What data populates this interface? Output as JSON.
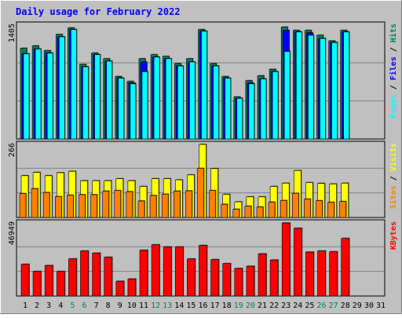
{
  "title": "Daily usage for February 2022",
  "colors": {
    "background": "#c0c0c0",
    "title": "#0000ff",
    "hits": "#00805c",
    "files": "#0000ff",
    "pages": "#00ffff",
    "visits": "#ffff00",
    "sites": "#ff8000",
    "kbytes": "#ff0000",
    "weekend_label": "#00805c",
    "weekday_label": "#000000"
  },
  "chart_data": [
    {
      "type": "bar",
      "title": "",
      "ymax_label": "1405",
      "ylim": [
        0,
        1405
      ],
      "grid": true,
      "legend": [
        {
          "name": "Pages",
          "color": "#00ffff"
        },
        {
          "name": "Files",
          "color": "#0000ff"
        },
        {
          "name": "Hits",
          "color": "#00805c"
        }
      ],
      "categories": [
        "1",
        "2",
        "3",
        "4",
        "5",
        "6",
        "7",
        "8",
        "9",
        "10",
        "11",
        "12",
        "13",
        "14",
        "15",
        "16",
        "17",
        "18",
        "19",
        "20",
        "21",
        "22",
        "23",
        "24",
        "25",
        "26",
        "27",
        "28"
      ],
      "series": [
        {
          "name": "Hits",
          "values": [
            1120,
            1150,
            1090,
            1290,
            1370,
            920,
            1060,
            990,
            770,
            710,
            990,
            1040,
            1020,
            930,
            990,
            1350,
            930,
            770,
            520,
            720,
            780,
            860,
            1380,
            1340,
            1340,
            1280,
            1210,
            1340
          ]
        },
        {
          "name": "Files",
          "values": [
            1050,
            1110,
            1060,
            1260,
            1350,
            890,
            1040,
            960,
            750,
            690,
            950,
            1010,
            990,
            900,
            950,
            1330,
            900,
            750,
            500,
            690,
            740,
            830,
            1340,
            1320,
            1310,
            1240,
            1190,
            1320
          ]
        },
        {
          "name": "Pages",
          "values": [
            1050,
            1110,
            1060,
            1260,
            1350,
            890,
            1040,
            960,
            750,
            680,
            830,
            1010,
            990,
            900,
            950,
            1330,
            900,
            750,
            500,
            680,
            740,
            830,
            1080,
            1320,
            1280,
            1240,
            1190,
            1320
          ]
        }
      ]
    },
    {
      "type": "bar",
      "title": "",
      "ymax_label": "266",
      "ylim": [
        0,
        266
      ],
      "grid": true,
      "legend": [
        {
          "name": "Sites",
          "color": "#ff8000"
        },
        {
          "name": "Visits",
          "color": "#ffff00"
        }
      ],
      "categories": [
        "1",
        "2",
        "3",
        "4",
        "5",
        "6",
        "7",
        "8",
        "9",
        "10",
        "11",
        "12",
        "13",
        "14",
        "15",
        "16",
        "17",
        "18",
        "19",
        "20",
        "21",
        "22",
        "23",
        "24",
        "25",
        "26",
        "27",
        "28"
      ],
      "series": [
        {
          "name": "Visits",
          "values": [
            152,
            164,
            152,
            163,
            168,
            134,
            134,
            134,
            141,
            134,
            113,
            141,
            141,
            137,
            155,
            266,
            178,
            84,
            57,
            75,
            75,
            113,
            125,
            171,
            127,
            124,
            122,
            125
          ]
        },
        {
          "name": "Sites",
          "values": [
            87,
            105,
            91,
            76,
            81,
            83,
            83,
            96,
            98,
            94,
            60,
            80,
            85,
            96,
            97,
            179,
            98,
            48,
            30,
            41,
            38,
            56,
            62,
            88,
            67,
            61,
            55,
            58
          ]
        }
      ]
    },
    {
      "type": "bar",
      "title": "",
      "ymax_label": "46949",
      "ylim": [
        0,
        46949
      ],
      "grid": true,
      "legend": [
        {
          "name": "KBytes",
          "color": "#ff0000"
        }
      ],
      "categories": [
        "1",
        "2",
        "3",
        "4",
        "5",
        "6",
        "7",
        "8",
        "9",
        "10",
        "11",
        "12",
        "13",
        "14",
        "15",
        "16",
        "17",
        "18",
        "19",
        "20",
        "21",
        "22",
        "23",
        "24",
        "25",
        "26",
        "27",
        "28"
      ],
      "series": [
        {
          "name": "KBytes",
          "values": [
            20420,
            15790,
            19590,
            15780,
            23880,
            28940,
            27550,
            24910,
            9470,
            10960,
            29420,
            32950,
            31560,
            31560,
            23820,
            32500,
            23410,
            20850,
            17720,
            19130,
            27130,
            23150,
            46949,
            43560,
            28260,
            28940,
            28460,
            37050
          ]
        }
      ]
    }
  ],
  "x_axis": {
    "labels": [
      "1",
      "2",
      "3",
      "4",
      "5",
      "6",
      "7",
      "8",
      "9",
      "10",
      "11",
      "12",
      "13",
      "14",
      "15",
      "16",
      "17",
      "18",
      "19",
      "20",
      "21",
      "22",
      "23",
      "24",
      "25",
      "26",
      "27",
      "28",
      "29",
      "30",
      "31"
    ],
    "weekend": [
      "5",
      "6",
      "12",
      "13",
      "19",
      "20",
      "26",
      "27"
    ]
  },
  "side_labels": {
    "top": [
      {
        "text": "Pages",
        "color": "#00ffff"
      },
      {
        "text": " / ",
        "color": "#000000"
      },
      {
        "text": "Files",
        "color": "#0000ff"
      },
      {
        "text": " / ",
        "color": "#000000"
      },
      {
        "text": "Hits",
        "color": "#00805c"
      }
    ],
    "middle": [
      {
        "text": "Sites",
        "color": "#ff8000"
      },
      {
        "text": " / ",
        "color": "#000000"
      },
      {
        "text": "Visits",
        "color": "#ffff00"
      }
    ],
    "bottom": [
      {
        "text": "KBytes",
        "color": "#ff0000"
      }
    ]
  }
}
